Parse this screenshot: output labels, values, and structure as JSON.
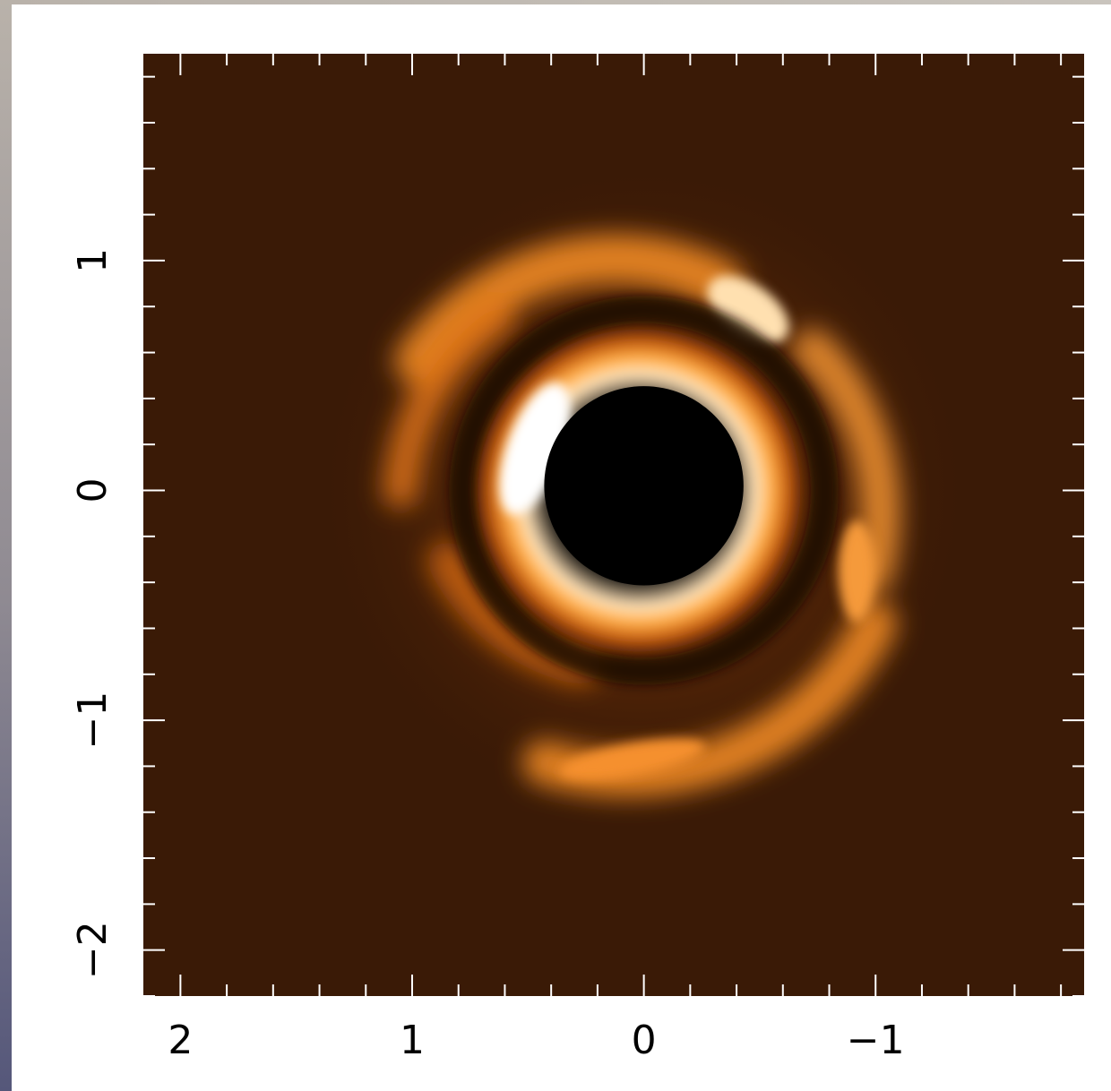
{
  "chart_data": {
    "type": "heatmap",
    "title": "",
    "xlabel": "",
    "ylabel": "",
    "x_reversed": true,
    "xlim": [
      2.16,
      -1.9
    ],
    "ylim": [
      -2.2,
      1.9
    ],
    "xticks": [
      {
        "value": 2,
        "label": "2"
      },
      {
        "value": 1,
        "label": "1"
      },
      {
        "value": 0,
        "label": "0"
      },
      {
        "value": -1,
        "label": "−1"
      }
    ],
    "yticks": [
      {
        "value": 1,
        "label": "1"
      },
      {
        "value": 0,
        "label": "0"
      },
      {
        "value": -1,
        "label": "−1"
      },
      {
        "value": -2,
        "label": "−2"
      }
    ],
    "minor_tick_step": 0.2,
    "colormap": [
      "#000000",
      "#3a1a06",
      "#8a3c0a",
      "#e8780f",
      "#ffb247",
      "#ffffff"
    ],
    "background_color": "#3a1a06",
    "features": {
      "center": [
        0,
        0
      ],
      "mask_radius": 0.43,
      "bright_ring_radius": 0.58,
      "dark_gap_radius": 0.78,
      "outer_arms_radius": [
        0.95,
        1.3
      ]
    }
  }
}
